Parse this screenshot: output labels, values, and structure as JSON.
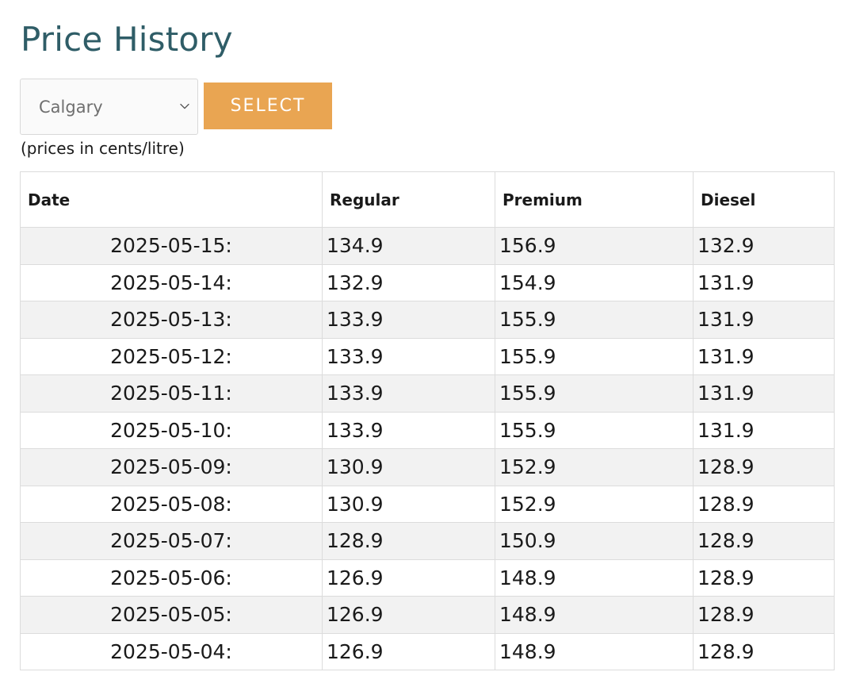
{
  "page": {
    "title": "Price History",
    "units_note": "(prices in cents/litre)"
  },
  "controls": {
    "city_value": "Calgary",
    "select_label": "SELECT"
  },
  "table": {
    "headers": [
      "Date",
      "Regular",
      "Premium",
      "Diesel"
    ],
    "rows": [
      {
        "date": "2025-05-15:",
        "regular": "134.9",
        "premium": "156.9",
        "diesel": "132.9"
      },
      {
        "date": "2025-05-14:",
        "regular": "132.9",
        "premium": "154.9",
        "diesel": "131.9"
      },
      {
        "date": "2025-05-13:",
        "regular": "133.9",
        "premium": "155.9",
        "diesel": "131.9"
      },
      {
        "date": "2025-05-12:",
        "regular": "133.9",
        "premium": "155.9",
        "diesel": "131.9"
      },
      {
        "date": "2025-05-11:",
        "regular": "133.9",
        "premium": "155.9",
        "diesel": "131.9"
      },
      {
        "date": "2025-05-10:",
        "regular": "133.9",
        "premium": "155.9",
        "diesel": "131.9"
      },
      {
        "date": "2025-05-09:",
        "regular": "130.9",
        "premium": "152.9",
        "diesel": "128.9"
      },
      {
        "date": "2025-05-08:",
        "regular": "130.9",
        "premium": "152.9",
        "diesel": "128.9"
      },
      {
        "date": "2025-05-07:",
        "regular": "128.9",
        "premium": "150.9",
        "diesel": "128.9"
      },
      {
        "date": "2025-05-06:",
        "regular": "126.9",
        "premium": "148.9",
        "diesel": "128.9"
      },
      {
        "date": "2025-05-05:",
        "regular": "126.9",
        "premium": "148.9",
        "diesel": "128.9"
      },
      {
        "date": "2025-05-04:",
        "regular": "126.9",
        "premium": "148.9",
        "diesel": "128.9"
      }
    ]
  },
  "colors": {
    "title": "#2f5d67",
    "button": "#e9a552",
    "row_stripe": "#f2f2f2"
  },
  "icons": {
    "dropdown": "chevron-down-icon"
  }
}
